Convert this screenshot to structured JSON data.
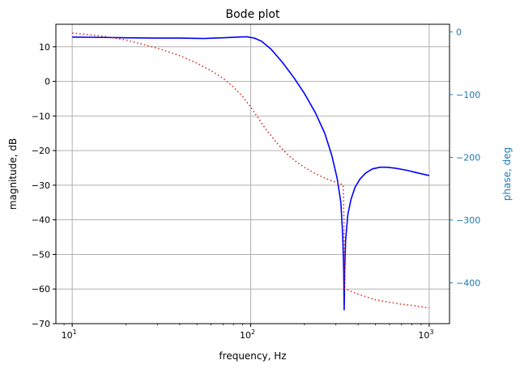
{
  "chart_data": {
    "type": "line",
    "title": "Bode plot",
    "xlabel": "frequency, Hz",
    "ylabel": "magnitude, dB",
    "y2label": "phase, deg",
    "x_scale": "log",
    "xlim": [
      8.1,
      1300
    ],
    "ylim": [
      -70,
      16.5
    ],
    "y2lim": [
      -465,
      12
    ],
    "grid": true,
    "x_ticks": [
      {
        "value": 10,
        "base": "10",
        "exp": "1"
      },
      {
        "value": 100,
        "base": "10",
        "exp": "2"
      },
      {
        "value": 1000,
        "base": "10",
        "exp": "3"
      }
    ],
    "y_ticks": [
      10,
      0,
      -10,
      -20,
      -30,
      -40,
      -50,
      -60,
      -70
    ],
    "y_tick_labels": [
      "10",
      "0",
      "−10",
      "−20",
      "−30",
      "−40",
      "−50",
      "−60",
      "−70"
    ],
    "y2_ticks": [
      0,
      -100,
      -200,
      -300,
      -400
    ],
    "y2_tick_labels": [
      "0",
      "−100",
      "−200",
      "−300",
      "−400"
    ],
    "colors": {
      "magnitude": "#0000ff",
      "phase": "#dd2211",
      "right_axis": "#1f77b4",
      "grid": "#b0b0b0"
    },
    "series": [
      {
        "axis": "left",
        "style": "solid",
        "points": [
          [
            10,
            12.8
          ],
          [
            15,
            12.7
          ],
          [
            20,
            12.6
          ],
          [
            30,
            12.5
          ],
          [
            40,
            12.5
          ],
          [
            55,
            12.4
          ],
          [
            70,
            12.6
          ],
          [
            85,
            12.8
          ],
          [
            95,
            12.9
          ],
          [
            105,
            12.5
          ],
          [
            115,
            11.6
          ],
          [
            130,
            9.3
          ],
          [
            150,
            5.6
          ],
          [
            175,
            1.0
          ],
          [
            200,
            -3.5
          ],
          [
            230,
            -9.0
          ],
          [
            260,
            -15.0
          ],
          [
            285,
            -21.5
          ],
          [
            305,
            -28.0
          ],
          [
            320,
            -35.0
          ],
          [
            328,
            -45.0
          ],
          [
            332,
            -55.0
          ],
          [
            334,
            -66.0
          ],
          [
            336,
            -55.0
          ],
          [
            340,
            -46.0
          ],
          [
            350,
            -38.5
          ],
          [
            365,
            -34.0
          ],
          [
            385,
            -30.5
          ],
          [
            410,
            -28.2
          ],
          [
            440,
            -26.5
          ],
          [
            480,
            -25.3
          ],
          [
            530,
            -24.8
          ],
          [
            580,
            -24.8
          ],
          [
            650,
            -25.1
          ],
          [
            750,
            -25.7
          ],
          [
            870,
            -26.5
          ],
          [
            1000,
            -27.2
          ]
        ]
      },
      {
        "axis": "right",
        "style": "dotted",
        "points": [
          [
            10,
            -2
          ],
          [
            15,
            -7
          ],
          [
            20,
            -13
          ],
          [
            30,
            -26
          ],
          [
            40,
            -38
          ],
          [
            50,
            -50
          ],
          [
            60,
            -62
          ],
          [
            70,
            -74
          ],
          [
            80,
            -88
          ],
          [
            90,
            -103
          ],
          [
            100,
            -120
          ],
          [
            110,
            -137
          ],
          [
            120,
            -153
          ],
          [
            140,
            -177
          ],
          [
            160,
            -195
          ],
          [
            180,
            -207
          ],
          [
            200,
            -216
          ],
          [
            230,
            -226
          ],
          [
            270,
            -235
          ],
          [
            310,
            -241
          ],
          [
            330,
            -244
          ],
          [
            333,
            -300
          ],
          [
            336,
            -409
          ],
          [
            360,
            -413
          ],
          [
            400,
            -418
          ],
          [
            500,
            -427
          ],
          [
            600,
            -431
          ],
          [
            700,
            -434
          ],
          [
            800,
            -436
          ],
          [
            900,
            -438
          ],
          [
            1000,
            -440
          ]
        ]
      }
    ]
  }
}
